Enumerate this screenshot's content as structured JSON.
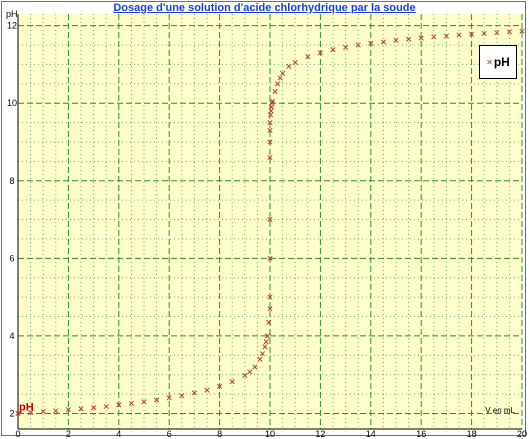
{
  "chart_data": {
    "type": "scatter",
    "title": "Dosage d'une solution d'acide chlorhydrique par la soude",
    "xlabel": "V en mL",
    "ylabel": "pH",
    "xlim": [
      0,
      20
    ],
    "ylim": [
      1.6,
      12.3
    ],
    "x_ticks": [
      0,
      2,
      4,
      6,
      8,
      10,
      12,
      14,
      16,
      18,
      20
    ],
    "y_ticks": [
      2,
      4,
      6,
      8,
      10,
      12
    ],
    "grid": true,
    "legend_position": "top-right",
    "series": [
      {
        "name": "pH",
        "label_on_plot": "pH",
        "color": "#c0392b",
        "marker": "x",
        "x": [
          0,
          0.5,
          1,
          1.5,
          2,
          2.5,
          3,
          3.5,
          4,
          4.5,
          5,
          5.5,
          6,
          6.5,
          7,
          7.5,
          8,
          8.5,
          9,
          9.2,
          9.4,
          9.6,
          9.7,
          9.8,
          9.85,
          9.9,
          9.95,
          10,
          10,
          10,
          10,
          10,
          10,
          10,
          10,
          10.02,
          10.04,
          10.06,
          10.08,
          10.1,
          10.2,
          10.3,
          10.4,
          10.5,
          10.75,
          11,
          11.5,
          12,
          12.5,
          13,
          13.5,
          14,
          14.5,
          15,
          15.5,
          16,
          16.5,
          17,
          17.5,
          18,
          18.5,
          19,
          19.5,
          20
        ],
        "y": [
          2.0,
          2.02,
          2.05,
          2.07,
          2.1,
          2.12,
          2.15,
          2.18,
          2.22,
          2.26,
          2.3,
          2.35,
          2.4,
          2.46,
          2.53,
          2.6,
          2.7,
          2.82,
          2.98,
          3.07,
          3.2,
          3.4,
          3.54,
          3.72,
          3.85,
          4.0,
          4.35,
          4.7,
          5.0,
          6.0,
          7.0,
          8.6,
          9.0,
          9.3,
          9.5,
          9.7,
          9.8,
          9.9,
          10.0,
          10.05,
          10.3,
          10.5,
          10.65,
          10.77,
          10.95,
          11.05,
          11.2,
          11.3,
          11.38,
          11.44,
          11.5,
          11.54,
          11.58,
          11.62,
          11.65,
          11.68,
          11.71,
          11.73,
          11.76,
          11.78,
          11.8,
          11.82,
          11.84,
          11.86
        ]
      }
    ]
  },
  "legend": {
    "label": "pH"
  }
}
